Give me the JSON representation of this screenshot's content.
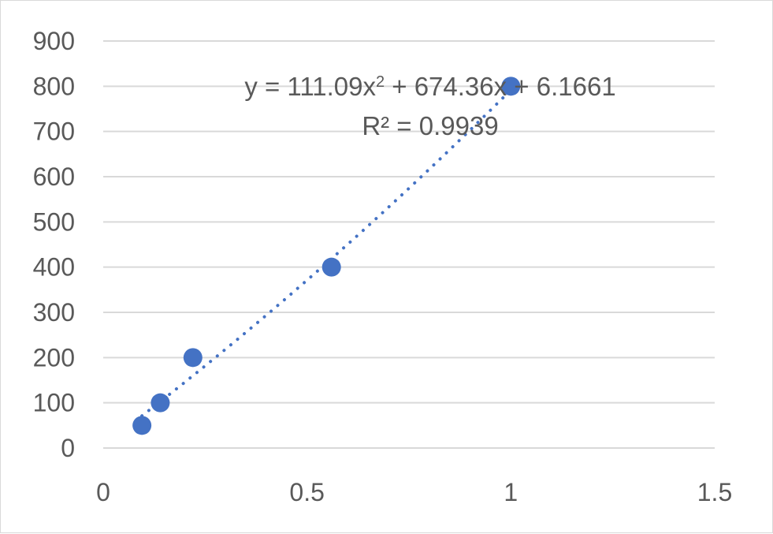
{
  "chart_data": {
    "type": "scatter",
    "title": "",
    "xlabel": "",
    "ylabel": "",
    "xlim": [
      0,
      1.5
    ],
    "ylim": [
      0,
      900
    ],
    "x_ticks": [
      "0",
      "0.5",
      "1",
      "1.5"
    ],
    "y_ticks": [
      "0",
      "100",
      "200",
      "300",
      "400",
      "500",
      "600",
      "700",
      "800",
      "900"
    ],
    "grid": "horizontal",
    "legend": "none",
    "series": [
      {
        "points": [
          {
            "x": 0.095,
            "y": 50
          },
          {
            "x": 0.14,
            "y": 100
          },
          {
            "x": 0.22,
            "y": 200
          },
          {
            "x": 0.56,
            "y": 400
          },
          {
            "x": 1.0,
            "y": 800
          }
        ],
        "color": "#4472c4"
      }
    ],
    "trendline": {
      "type": "polynomial",
      "order": 2,
      "coefficients": [
        111.09,
        674.36,
        6.1661
      ],
      "r_squared": 0.9939,
      "x_range": [
        0.095,
        1.0
      ],
      "color": "#4472c4",
      "style": "dotted"
    },
    "annotations": {
      "equation_prefix": "y = 111.09x",
      "equation_exponent": "2",
      "equation_suffix": " + 674.36x + 6.1661",
      "r2_label": "R² = 0.9939"
    }
  }
}
